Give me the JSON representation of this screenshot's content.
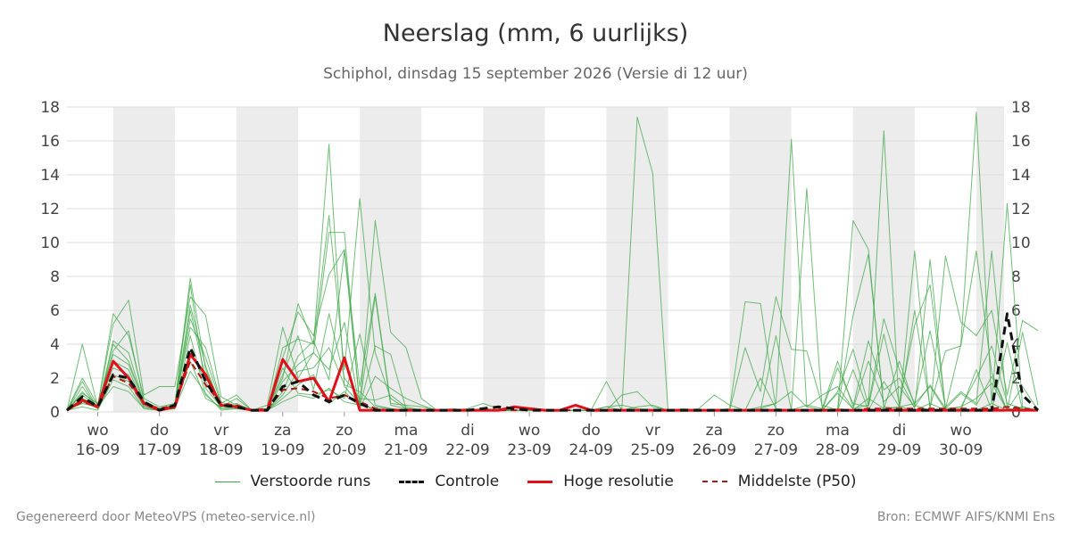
{
  "colors": {
    "perturbed": "#41a84a",
    "control": "#111111",
    "high_res": "#e0101a",
    "median": "#b01818",
    "weekend_band": "#ececec",
    "grid": "#dddddd"
  },
  "chart_data": {
    "type": "line",
    "title": "Neerslag (mm, 6 uurlijks)",
    "subtitle": "Schiphol, dinsdag 15 september 2026 (Versie di 12 uur)",
    "xlabel": "",
    "ylabel": "",
    "ylim": [
      0,
      18
    ],
    "yticks": [
      0,
      2,
      4,
      6,
      8,
      10,
      12,
      14,
      16,
      18
    ],
    "grid": true,
    "legend_position": "bottom",
    "x_unit": "days",
    "x_start": "15-09",
    "xlim": [
      0,
      15.2
    ],
    "x_step": 0.25,
    "x_ticks": [
      {
        "day": "wo",
        "date": "16-09",
        "x": 0.5
      },
      {
        "day": "do",
        "date": "17-09",
        "x": 1.5
      },
      {
        "day": "vr",
        "date": "18-09",
        "x": 2.5
      },
      {
        "day": "za",
        "date": "19-09",
        "x": 3.5
      },
      {
        "day": "zo",
        "date": "20-09",
        "x": 4.5
      },
      {
        "day": "ma",
        "date": "21-09",
        "x": 5.5
      },
      {
        "day": "di",
        "date": "22-09",
        "x": 6.5
      },
      {
        "day": "wo",
        "date": "23-09",
        "x": 7.5
      },
      {
        "day": "do",
        "date": "24-09",
        "x": 8.5
      },
      {
        "day": "vr",
        "date": "25-09",
        "x": 9.5
      },
      {
        "day": "za",
        "date": "26-09",
        "x": 10.5
      },
      {
        "day": "zo",
        "date": "27-09",
        "x": 11.5
      },
      {
        "day": "ma",
        "date": "28-09",
        "x": 12.5
      },
      {
        "day": "di",
        "date": "29-09",
        "x": 13.5
      },
      {
        "day": "wo",
        "date": "30-09",
        "x": 14.5
      }
    ],
    "shaded_bands": [
      [
        0.75,
        1.75
      ],
      [
        2.75,
        3.75
      ],
      [
        4.75,
        5.75
      ],
      [
        6.75,
        7.75
      ],
      [
        8.75,
        9.75
      ],
      [
        10.75,
        11.75
      ],
      [
        12.75,
        13.75
      ],
      [
        14.75,
        15.2
      ]
    ],
    "series": [
      {
        "name": "Controle",
        "style": "control",
        "values": [
          0.1,
          0.9,
          0.3,
          2.2,
          2.0,
          0.6,
          0.1,
          0.4,
          3.8,
          1.8,
          0.4,
          0.3,
          0.1,
          0.1,
          1.5,
          1.8,
          1.0,
          0.6,
          1.0,
          0.5,
          0.1,
          0.1,
          0.1,
          0.1,
          0.1,
          0.1,
          0.1,
          0.2,
          0.3,
          0.2,
          0.1,
          0.1,
          0.1,
          0.1,
          0.1,
          0.1,
          0.1,
          0.1,
          0.1,
          0.1,
          0.1,
          0.1,
          0.1,
          0.1,
          0.1,
          0.1,
          0.1,
          0.1,
          0.1,
          0.1,
          0.1,
          0.1,
          0.1,
          0.1,
          0.1,
          0.1,
          0.1,
          0.1,
          0.1,
          0.1,
          0.1,
          5.8,
          1.0,
          0.1
        ]
      },
      {
        "name": "Hoge resolutie",
        "style": "high_res",
        "values": [
          0.1,
          0.7,
          0.3,
          3.0,
          2.0,
          0.5,
          0.1,
          0.3,
          3.4,
          2.2,
          0.4,
          0.3,
          0.1,
          0.1,
          3.1,
          1.8,
          2.0,
          0.6,
          3.2,
          0.1,
          0.1,
          0.1,
          0.1,
          0.1,
          0.1,
          0.1,
          0.1,
          0.1,
          0.1,
          0.3,
          0.2,
          0.1,
          0.1,
          0.4,
          0.1,
          0.1,
          0.1,
          0.1,
          0.1,
          0.1,
          0.1,
          0.1,
          0.1,
          0.1,
          0.1,
          0.1,
          0.1,
          0.1,
          0.1,
          0.1,
          0.1,
          0.1,
          0.1,
          0.1,
          0.1,
          0.1,
          0.1,
          0.1,
          0.1,
          0.1,
          0.1,
          0.1,
          0.1,
          0.1
        ]
      },
      {
        "name": "Middelste (P50)",
        "style": "median",
        "values": [
          0.1,
          0.6,
          0.3,
          2.1,
          1.7,
          0.5,
          0.2,
          0.4,
          3.0,
          1.6,
          0.5,
          0.4,
          0.1,
          0.2,
          1.3,
          1.4,
          1.2,
          0.8,
          1.0,
          0.6,
          0.2,
          0.1,
          0.1,
          0.1,
          0.1,
          0.1,
          0.1,
          0.1,
          0.1,
          0.1,
          0.1,
          0.1,
          0.1,
          0.1,
          0.1,
          0.1,
          0.1,
          0.1,
          0.1,
          0.1,
          0.1,
          0.1,
          0.1,
          0.1,
          0.1,
          0.1,
          0.1,
          0.1,
          0.1,
          0.1,
          0.1,
          0.1,
          0.2,
          0.2,
          0.2,
          0.2,
          0.2,
          0.2,
          0.2,
          0.2,
          0.2,
          0.3,
          0.2,
          0.1
        ]
      },
      {
        "name": "Verstoorde runs",
        "style": "perturbed",
        "values": [
          0.1,
          4.0,
          0.3,
          5.8,
          4.5,
          0.8,
          0.3,
          0.5,
          7.9,
          2.5,
          0.4,
          0.3,
          0.1,
          0.2,
          2.0,
          6.4,
          4.0,
          15.8,
          1.5,
          0.5,
          0.1,
          0.1,
          0.1,
          0.1,
          0.1,
          0.1,
          0.2,
          0.5,
          0.2,
          0.1,
          0.1,
          0.1,
          0.1,
          0.4,
          0.1,
          1.8,
          0.1,
          17.4,
          14.1,
          0.1,
          0.1,
          0.2,
          1.0,
          0.4,
          0.1,
          0.3,
          0.5,
          16.1,
          0.3,
          1.0,
          1.5,
          0.2,
          0.4,
          16.6,
          0.1,
          9.5,
          0.1,
          0.2,
          4.0,
          17.7,
          0.5,
          12.3,
          0.3,
          0.1
        ]
      },
      {
        "name": "Verstoorde runs",
        "style": "perturbed",
        "values": [
          0.1,
          2.0,
          0.4,
          5.2,
          6.6,
          1.0,
          1.5,
          1.5,
          6.8,
          5.7,
          0.9,
          0.4,
          0.1,
          0.4,
          5.0,
          2.0,
          3.5,
          10.6,
          10.6,
          0.3,
          11.3,
          4.7,
          3.8,
          0.8,
          0.1,
          0.1,
          0.1,
          0.1,
          0.1,
          0.3,
          0.1,
          0.1,
          0.1,
          0.1,
          0.1,
          0.3,
          0.4,
          0.2,
          0.1,
          0.1,
          0.2,
          0.1,
          0.1,
          0.2,
          6.5,
          6.4,
          0.2,
          0.1,
          13.2,
          0.2,
          0.1,
          11.3,
          9.6,
          0.2,
          3.0,
          0.4,
          0.1,
          9.2,
          5.3,
          4.5,
          6.0,
          1.0,
          5.4,
          4.8
        ]
      },
      {
        "name": "Verstoorde runs",
        "style": "perturbed",
        "values": [
          0.1,
          1.5,
          0.2,
          4.2,
          3.5,
          0.5,
          0.2,
          0.3,
          5.5,
          3.2,
          0.5,
          1.0,
          0.1,
          0.1,
          3.8,
          4.3,
          4.0,
          11.6,
          2.5,
          12.6,
          3.5,
          0.8,
          0.2,
          0.1,
          0.1,
          0.1,
          0.1,
          0.1,
          0.1,
          0.1,
          0.1,
          0.1,
          0.1,
          0.1,
          0.1,
          0.1,
          1.0,
          1.2,
          0.3,
          0.1,
          0.1,
          0.1,
          0.1,
          0.1,
          3.8,
          1.2,
          6.8,
          3.7,
          3.6,
          0.4,
          0.1,
          5.7,
          9.3,
          0.3,
          0.2,
          6.0,
          0.3,
          3.6,
          3.9,
          9.5,
          2.3,
          0.1,
          4.7,
          0.4
        ]
      },
      {
        "name": "Verstoorde runs",
        "style": "perturbed",
        "values": [
          0.1,
          1.0,
          0.3,
          3.6,
          4.8,
          0.6,
          0.2,
          0.4,
          7.5,
          1.4,
          0.3,
          0.8,
          0.1,
          0.1,
          3.2,
          5.9,
          4.5,
          8.1,
          9.6,
          1.5,
          7.0,
          0.5,
          0.4,
          0.3,
          0.1,
          0.1,
          0.1,
          0.2,
          0.1,
          0.1,
          0.1,
          0.1,
          0.1,
          0.1,
          0.1,
          0.1,
          0.1,
          0.3,
          0.4,
          0.1,
          0.1,
          0.1,
          0.1,
          0.1,
          0.1,
          0.1,
          0.1,
          0.1,
          0.1,
          0.1,
          1.2,
          3.7,
          0.4,
          5.5,
          2.5,
          0.5,
          4.8,
          0.3,
          1.2,
          0.5,
          9.5,
          0.2,
          0.1,
          0.1
        ]
      },
      {
        "name": "Verstoorde runs",
        "style": "perturbed",
        "values": [
          0.1,
          1.2,
          0.3,
          3.0,
          2.5,
          0.4,
          0.2,
          0.3,
          6.0,
          2.0,
          0.4,
          0.3,
          0.1,
          0.1,
          1.2,
          3.3,
          4.2,
          1.9,
          9.5,
          0.5,
          6.8,
          0.4,
          0.2,
          0.1,
          0.1,
          0.1,
          0.1,
          0.1,
          0.1,
          0.1,
          0.1,
          0.1,
          0.1,
          0.1,
          0.1,
          0.3,
          0.1,
          0.1,
          0.1,
          0.1,
          0.1,
          0.1,
          0.1,
          0.1,
          0.1,
          0.1,
          4.5,
          0.1,
          0.4,
          0.2,
          3.0,
          0.3,
          4.2,
          1.3,
          2.0,
          0.2,
          9.0,
          0.1,
          0.1,
          2.5,
          0.1,
          4.1,
          0.1,
          0.1
        ]
      },
      {
        "name": "Verstoorde runs",
        "style": "perturbed",
        "values": [
          0.1,
          0.8,
          0.4,
          2.2,
          1.8,
          0.3,
          0.1,
          0.2,
          4.5,
          1.0,
          0.2,
          0.2,
          0.1,
          0.1,
          2.6,
          1.1,
          1.0,
          1.3,
          0.8,
          4.6,
          0.4,
          0.2,
          0.1,
          0.1,
          0.1,
          0.1,
          0.1,
          0.1,
          0.1,
          0.1,
          0.1,
          0.1,
          0.1,
          0.1,
          0.1,
          0.1,
          0.1,
          0.1,
          0.1,
          0.1,
          0.1,
          0.1,
          0.1,
          0.1,
          0.1,
          0.1,
          0.1,
          0.1,
          0.1,
          0.1,
          2.6,
          0.5,
          0.3,
          4.6,
          0.5,
          5.1,
          7.5,
          0.2,
          0.3,
          2.0,
          3.9,
          0.5,
          0.2,
          0.1
        ]
      },
      {
        "name": "Verstoorde runs",
        "style": "perturbed",
        "values": [
          0.1,
          0.5,
          0.3,
          1.5,
          1.2,
          0.2,
          0.1,
          0.3,
          3.0,
          0.8,
          0.3,
          0.4,
          0.1,
          0.1,
          0.8,
          1.6,
          2.2,
          0.5,
          1.2,
          0.3,
          3.9,
          3.4,
          0.2,
          0.1,
          0.1,
          0.2,
          0.1,
          0.1,
          0.1,
          0.1,
          0.1,
          0.1,
          0.1,
          0.1,
          0.1,
          0.1,
          0.1,
          0.1,
          0.1,
          0.1,
          0.1,
          0.1,
          0.1,
          0.1,
          0.1,
          0.1,
          0.1,
          0.1,
          0.1,
          0.1,
          1.1,
          0.2,
          3.0,
          0.6,
          1.5,
          0.3,
          1.6,
          0.2,
          1.1,
          0.4,
          2.1,
          0.1,
          1.5,
          0.1
        ]
      },
      {
        "name": "Verstoorde runs",
        "style": "perturbed",
        "values": [
          0.1,
          1.8,
          0.2,
          4.0,
          3.0,
          0.5,
          0.1,
          0.5,
          5.0,
          3.8,
          0.6,
          0.2,
          0.1,
          0.1,
          1.8,
          2.8,
          3.5,
          2.5,
          5.3,
          0.2,
          2.1,
          1.4,
          0.8,
          0.4,
          0.1,
          0.1,
          0.1,
          0.1,
          0.1,
          0.1,
          0.1,
          0.1,
          0.1,
          0.1,
          0.1,
          0.1,
          0.1,
          0.1,
          0.1,
          0.1,
          0.1,
          0.1,
          0.1,
          0.1,
          0.1,
          2.0,
          0.2,
          0.1,
          0.1,
          0.1,
          0.1,
          2.5,
          0.1,
          1.8,
          0.3,
          0.5,
          1.5,
          0.1,
          0.3,
          0.8,
          1.7,
          0.1,
          0.3,
          0.1
        ]
      },
      {
        "name": "Verstoorde runs",
        "style": "perturbed",
        "values": [
          0.1,
          1.1,
          0.5,
          3.4,
          2.8,
          0.6,
          0.2,
          0.4,
          6.3,
          2.7,
          0.3,
          0.5,
          0.1,
          0.2,
          2.2,
          4.5,
          1.3,
          5.8,
          2.0,
          0.8,
          0.7,
          1.0,
          0.3,
          0.1,
          0.1,
          0.1,
          0.1,
          0.1,
          0.1,
          0.1,
          0.1,
          0.1,
          0.1,
          0.1,
          0.1,
          0.1,
          0.1,
          0.1,
          0.1,
          0.1,
          0.1,
          0.1,
          0.1,
          0.1,
          0.1,
          0.2,
          0.5,
          1.2,
          0.3,
          0.1,
          0.2,
          0.1,
          0.8,
          0.2,
          0.3,
          0.1,
          0.5,
          0.1,
          0.2,
          0.1,
          0.5,
          0.1,
          0.2,
          0.1
        ]
      },
      {
        "name": "Verstoorde runs",
        "style": "perturbed",
        "values": [
          0.1,
          0.6,
          0.2,
          2.6,
          2.2,
          0.3,
          0.2,
          0.2,
          3.6,
          1.8,
          0.2,
          0.3,
          0.1,
          0.1,
          1.0,
          2.4,
          2.6,
          3.8,
          1.6,
          1.2,
          0.3,
          0.2,
          0.1,
          0.1,
          0.1,
          0.1,
          0.1,
          0.1,
          0.1,
          0.1,
          0.1,
          0.1,
          0.1,
          0.1,
          0.1,
          0.1,
          0.1,
          0.1,
          0.1,
          0.1,
          0.1,
          0.1,
          0.1,
          0.1,
          0.1,
          0.1,
          0.1,
          0.1,
          0.1,
          0.1,
          0.1,
          0.1,
          0.1,
          0.1,
          0.1,
          0.1,
          0.1,
          0.1,
          0.1,
          0.1,
          0.1,
          0.1,
          0.1,
          0.1
        ]
      },
      {
        "name": "Verstoorde runs",
        "style": "perturbed",
        "values": [
          0.1,
          0.3,
          0.1,
          1.9,
          1.5,
          0.2,
          0.1,
          0.2,
          2.4,
          1.1,
          0.1,
          0.2,
          0.1,
          0.1,
          0.6,
          1.0,
          0.8,
          1.4,
          0.6,
          0.4,
          0.2,
          0.1,
          0.1,
          0.1,
          0.1,
          0.1,
          0.1,
          0.1,
          0.1,
          0.1,
          0.1,
          0.1,
          0.1,
          0.1,
          0.1,
          0.1,
          0.1,
          0.1,
          0.1,
          0.1,
          0.1,
          0.1,
          0.1,
          0.1,
          0.1,
          0.1,
          0.1,
          0.1,
          0.1,
          0.1,
          0.1,
          0.1,
          0.1,
          0.1,
          0.1,
          0.1,
          0.1,
          0.1,
          0.1,
          0.1,
          0.1,
          0.1,
          0.1,
          0.1
        ]
      }
    ]
  },
  "legend": {
    "perturbed": "Verstoorde runs",
    "control": "Controle",
    "high_res": "Hoge resolutie",
    "median": "Middelste (P50)"
  },
  "footer": {
    "left": "Gegenereerd door MeteoVPS (meteo-service.nl)",
    "right": "Bron: ECMWF AIFS/KNMI Ens"
  }
}
